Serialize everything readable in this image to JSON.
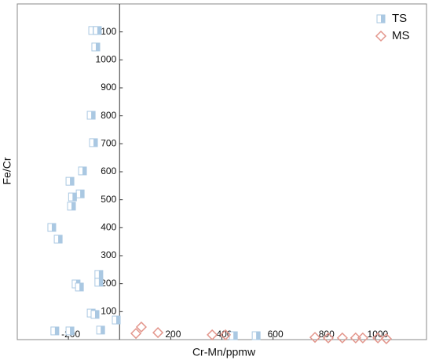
{
  "chart_data": {
    "type": "scatter",
    "x_label": "Cr-Mn/ppmw",
    "y_label": "Fe/Cr",
    "xlim": [
      -400,
      1200
    ],
    "ylim": [
      0,
      1200
    ],
    "xticks": [
      -200,
      200,
      400,
      600,
      800,
      1000
    ],
    "yticks": [
      100,
      200,
      300,
      400,
      500,
      600,
      700,
      800,
      900,
      1000,
      1100
    ],
    "legend": "upper right",
    "series": [
      {
        "name": "TS",
        "color": "#aac8e2",
        "marker": "half-square",
        "x": [
          -105,
          -87,
          -93,
          -111,
          -102,
          -145,
          -194,
          -154,
          -184,
          -188,
          -265,
          -240,
          -81,
          -81,
          -170,
          -157,
          -111,
          -96,
          -13,
          -194,
          -74,
          -253,
          445,
          534
        ],
        "y": [
          1105,
          1105,
          1046,
          802,
          704,
          603,
          566,
          521,
          510,
          477,
          401,
          359,
          233,
          205,
          199,
          188,
          95,
          90,
          70,
          31,
          34,
          31,
          14,
          14
        ]
      },
      {
        "name": "MS",
        "color": "#e3968c",
        "marker": "diamond",
        "x": [
          64,
          85,
          150,
          362,
          414,
          764,
          816,
          871,
          923,
          951,
          1010,
          1043
        ],
        "y": [
          22,
          45,
          25,
          17,
          17,
          8,
          6,
          6,
          6,
          6,
          6,
          3
        ]
      }
    ]
  }
}
